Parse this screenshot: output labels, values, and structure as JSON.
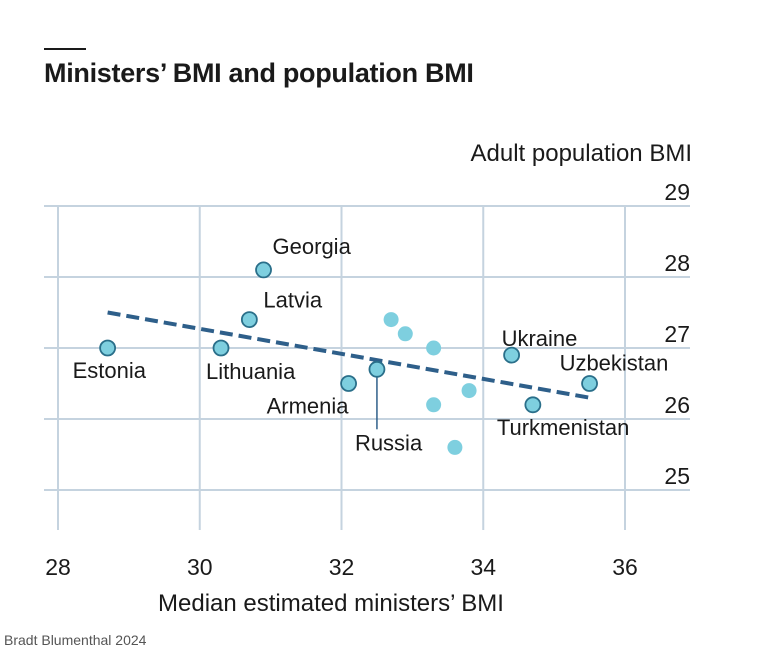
{
  "title": "Ministers’ BMI and population BMI",
  "source": "Bradt Blumenthal 2024",
  "colors": {
    "point": "#7ecfdf",
    "point_stroke": "#2a6f8a",
    "trend": "#2e5f8a",
    "grid": "#c5d3df",
    "text": "#1a1a1a"
  },
  "chart_data": {
    "type": "scatter",
    "xlabel": "Median estimated ministers’ BMI",
    "ylabel": "Adult population BMI",
    "xlim": [
      28,
      36
    ],
    "ylim": [
      24.5,
      29
    ],
    "xticks": [
      28,
      30,
      32,
      34,
      36
    ],
    "yticks": [
      25,
      26,
      27,
      28,
      29
    ],
    "y_axis_side": "right",
    "grid": true,
    "points": [
      {
        "label": "Estonia",
        "x": 28.7,
        "y": 27.0
      },
      {
        "label": "Lithuania",
        "x": 30.3,
        "y": 27.0
      },
      {
        "label": "Latvia",
        "x": 30.7,
        "y": 27.4
      },
      {
        "label": "Georgia",
        "x": 30.9,
        "y": 28.1
      },
      {
        "label": "Armenia",
        "x": 32.1,
        "y": 26.5
      },
      {
        "label": "Russia",
        "x": 32.5,
        "y": 26.7
      },
      {
        "label": "",
        "x": 32.7,
        "y": 27.4
      },
      {
        "label": "",
        "x": 32.9,
        "y": 27.2
      },
      {
        "label": "",
        "x": 33.3,
        "y": 27.0
      },
      {
        "label": "",
        "x": 33.3,
        "y": 26.2
      },
      {
        "label": "",
        "x": 33.6,
        "y": 25.6
      },
      {
        "label": "",
        "x": 33.8,
        "y": 26.4
      },
      {
        "label": "Ukraine",
        "x": 34.4,
        "y": 26.9
      },
      {
        "label": "Turkmenistan",
        "x": 34.7,
        "y": 26.2
      },
      {
        "label": "Uzbekistan",
        "x": 35.5,
        "y": 26.5
      }
    ],
    "trendline": {
      "x": [
        28.7,
        35.5
      ],
      "y": [
        27.5,
        26.3
      ]
    }
  }
}
